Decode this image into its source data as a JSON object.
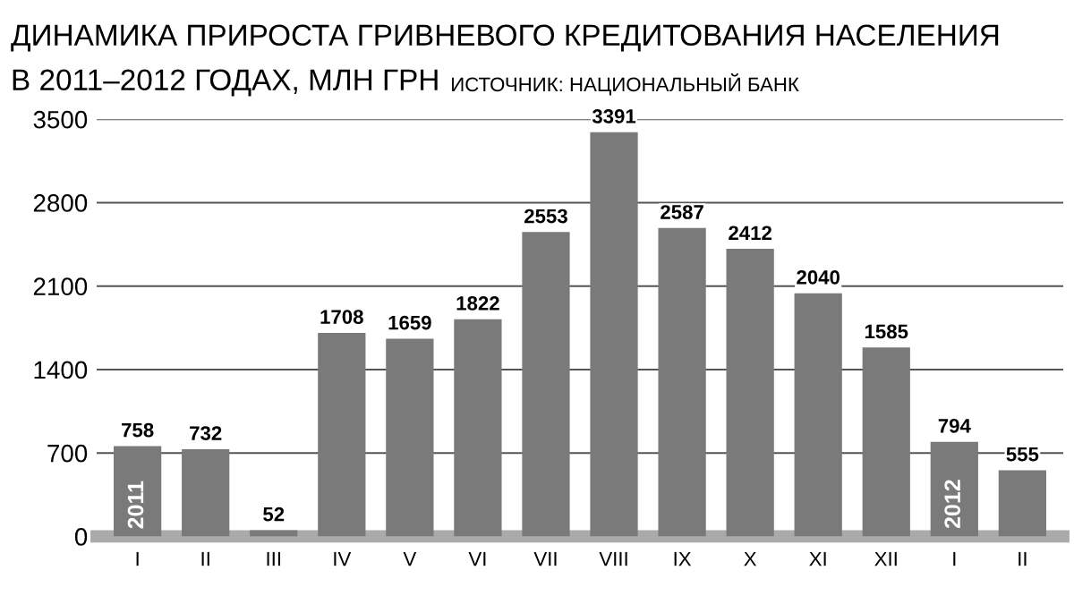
{
  "chart_data": {
    "type": "bar",
    "title": "ДИНАМИКА ПРИРОСТА ГРИВНЕВОГО КРЕДИТОВАНИЯ НАСЕЛЕНИЯ",
    "subtitle": "В 2011–2012 ГОДАХ, МЛН ГРН",
    "annotations": [
      "ИСТОЧНИК: НАЦИОНАЛЬНЫЙ БАНК",
      "2011",
      "2012"
    ],
    "categories": [
      "I",
      "II",
      "III",
      "IV",
      "V",
      "VI",
      "VII",
      "VIII",
      "IX",
      "X",
      "XI",
      "XII",
      "I",
      "II"
    ],
    "values": [
      758,
      732,
      52,
      1708,
      1659,
      1822,
      2553,
      3391,
      2587,
      2412,
      2040,
      1585,
      794,
      555
    ],
    "color": "#7a7a7a",
    "data_labels": true,
    "ylim": [
      0,
      3500
    ],
    "yticks": [
      0,
      700,
      1400,
      2100,
      2800,
      3500
    ],
    "grid": "y"
  }
}
